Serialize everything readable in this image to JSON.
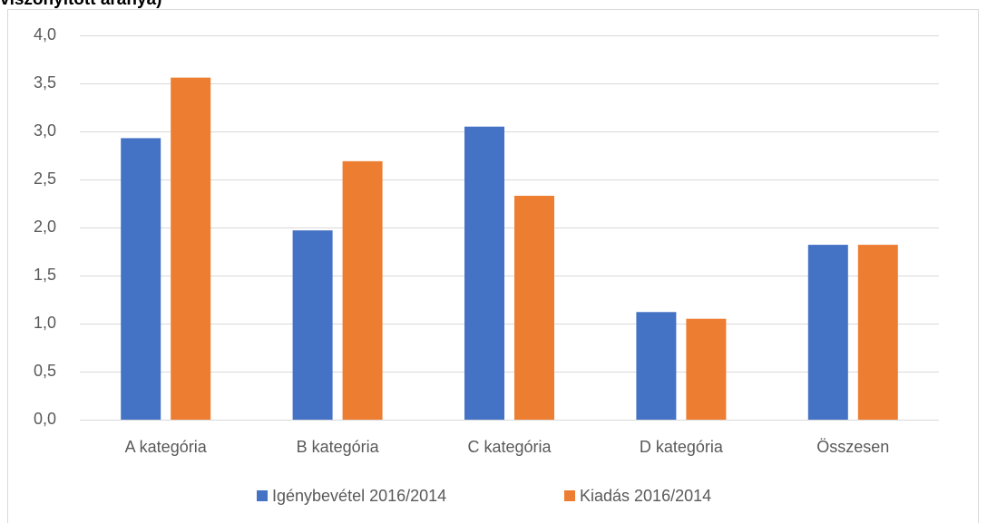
{
  "chart_data": {
    "type": "bar",
    "title": "viszonyított aránya)",
    "categories": [
      "A kategória",
      "B kategória",
      "C kategória",
      "D kategória",
      "Összesen"
    ],
    "series": [
      {
        "name": "Igénybevétel 2016/2014",
        "color": "#4472c4",
        "values": [
          2.93,
          1.97,
          3.05,
          1.12,
          1.82
        ]
      },
      {
        "name": "Kiadás 2016/2014",
        "color": "#ed7d31",
        "values": [
          3.56,
          2.69,
          2.33,
          1.05,
          1.82
        ]
      }
    ],
    "ylim": [
      0,
      4
    ],
    "yticks": [
      {
        "value": 0,
        "label": "0,0"
      },
      {
        "value": 0.5,
        "label": "0,5"
      },
      {
        "value": 1,
        "label": "1,0"
      },
      {
        "value": 1.5,
        "label": "1,5"
      },
      {
        "value": 2,
        "label": "2,0"
      },
      {
        "value": 2.5,
        "label": "2,5"
      },
      {
        "value": 3,
        "label": "3,0"
      },
      {
        "value": 3.5,
        "label": "3,5"
      },
      {
        "value": 4,
        "label": "4,0"
      }
    ],
    "grid": true,
    "legend": "bottom"
  }
}
